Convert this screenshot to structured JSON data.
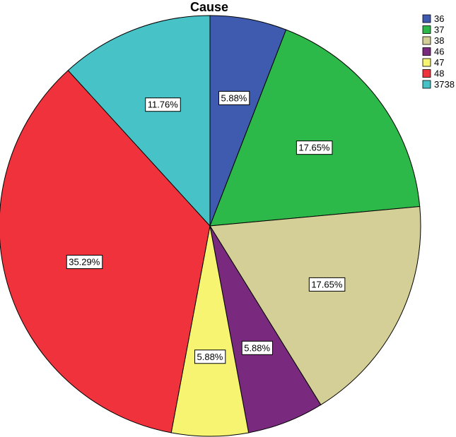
{
  "chart_data": {
    "type": "pie",
    "title": "Cause",
    "legend_position": "top-right",
    "slices": [
      {
        "label": "36",
        "value": 5.88,
        "display": "5.88%",
        "color": "#3f5bb0"
      },
      {
        "label": "37",
        "value": 17.65,
        "display": "17.65%",
        "color": "#2db84a"
      },
      {
        "label": "38",
        "value": 17.65,
        "display": "17.65%",
        "color": "#d4cf96"
      },
      {
        "label": "46",
        "value": 5.88,
        "display": "5.88%",
        "color": "#7a2a7e"
      },
      {
        "label": "47",
        "value": 5.88,
        "display": "5.88%",
        "color": "#f7f472"
      },
      {
        "label": "48",
        "value": 35.29,
        "display": "35.29%",
        "color": "#f0323c"
      },
      {
        "label": "3738",
        "value": 11.76,
        "display": "11.76%",
        "color": "#47c3c7"
      }
    ]
  }
}
